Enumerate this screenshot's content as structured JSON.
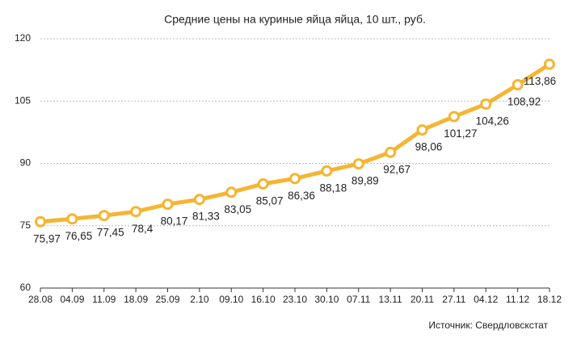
{
  "chart_data": {
    "type": "line",
    "title": "Средние цены на куриные яйца яйца, 10 шт., руб.",
    "source": "Источник: Свердловскстат",
    "categories": [
      "28.08",
      "04.09",
      "11.09",
      "18.09",
      "25.09",
      "2.10",
      "09.10",
      "16.10",
      "23.10",
      "30.10",
      "07.11",
      "13.11",
      "20.11",
      "27.11",
      "04.12",
      "11.12",
      "18.12"
    ],
    "series": [
      {
        "color": "#f4b532",
        "values": [
          75.97,
          76.65,
          77.45,
          78.4,
          80.17,
          81.33,
          83.05,
          85.07,
          86.36,
          88.18,
          89.89,
          92.67,
          98.06,
          101.27,
          104.26,
          108.92,
          113.86
        ],
        "value_labels": [
          "75,97",
          "76,65",
          "77,45",
          "78,4",
          "80,17",
          "81,33",
          "83,05",
          "85,07",
          "86,36",
          "88,18",
          "89,89",
          "92,67",
          "98,06",
          "101,27",
          "104,26",
          "108,92",
          "113,86"
        ]
      }
    ],
    "ylim": [
      60,
      120
    ],
    "yticks": [
      60,
      75,
      90,
      105,
      120
    ],
    "grid": true
  }
}
